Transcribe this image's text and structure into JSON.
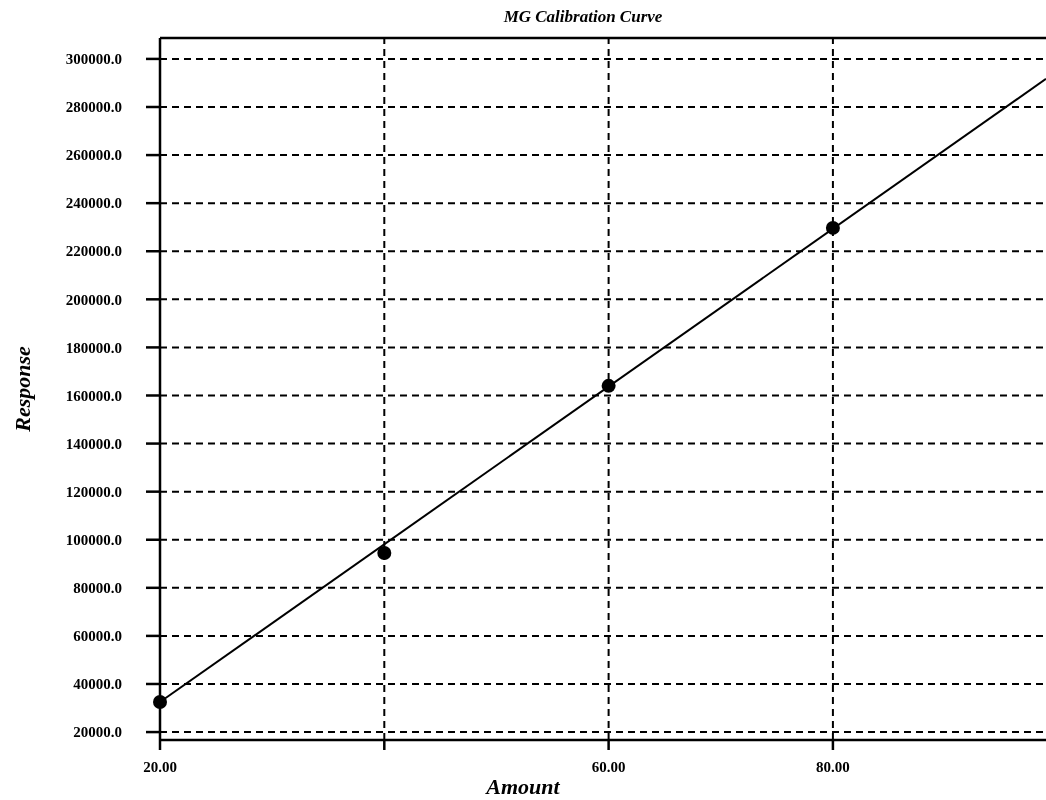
{
  "chart_data": {
    "type": "scatter",
    "title": "MG Calibration Curve",
    "xlabel": "Amount",
    "ylabel": "Response",
    "xlim": [
      20,
      99
    ],
    "ylim": [
      16700,
      308700
    ],
    "xticks": [
      {
        "value": 20,
        "label": "20.00"
      },
      {
        "value": 40,
        "label": null
      },
      {
        "value": 60,
        "label": "60.00"
      },
      {
        "value": 80,
        "label": "80.00"
      }
    ],
    "yticks": [
      {
        "value": 20000,
        "label": "20000.0"
      },
      {
        "value": 40000,
        "label": "40000.0"
      },
      {
        "value": 60000,
        "label": "60000.0"
      },
      {
        "value": 80000,
        "label": "80000.0"
      },
      {
        "value": 100000,
        "label": "100000.0"
      },
      {
        "value": 120000,
        "label": "120000.0"
      },
      {
        "value": 140000,
        "label": "140000.0"
      },
      {
        "value": 160000,
        "label": "160000.0"
      },
      {
        "value": 180000,
        "label": "180000.0"
      },
      {
        "value": 200000,
        "label": "200000.0"
      },
      {
        "value": 220000,
        "label": "220000.0"
      },
      {
        "value": 240000,
        "label": "240000.0"
      },
      {
        "value": 260000,
        "label": "260000.0"
      },
      {
        "value": 280000,
        "label": "280000.0"
      },
      {
        "value": 300000,
        "label": "300000.0"
      }
    ],
    "grid": true,
    "series": [
      {
        "type": "line",
        "marker": "none",
        "color": "#000000",
        "x": [
          20,
          99
        ],
        "values": [
          32500,
          291700
        ]
      },
      {
        "marker": "circle",
        "color": "#000000",
        "x": [
          20,
          40,
          60,
          80
        ],
        "values": [
          32500,
          94500,
          164000,
          229700
        ]
      }
    ]
  }
}
